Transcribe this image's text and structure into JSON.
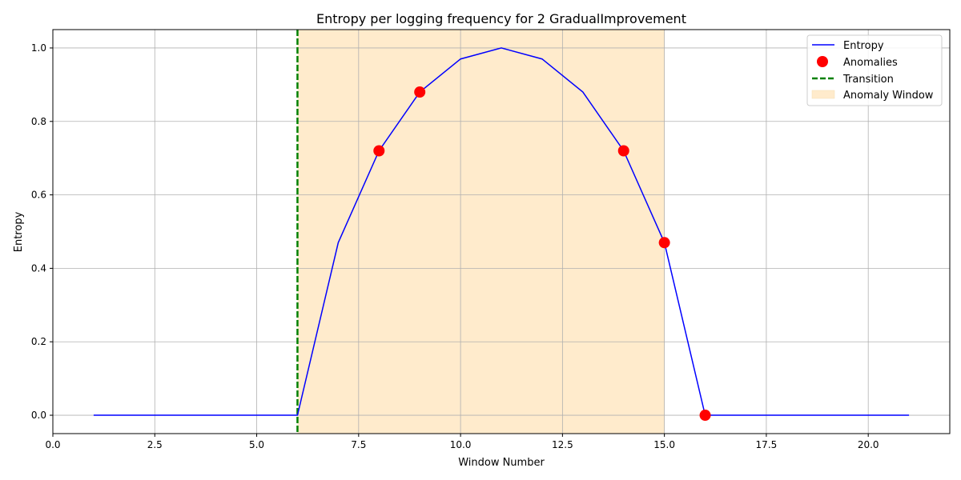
{
  "chart_data": {
    "type": "line",
    "title": "Entropy per logging frequency for 2 GradualImprovement",
    "xlabel": "Window Number",
    "ylabel": "Entropy",
    "xlim": [
      0,
      22
    ],
    "ylim": [
      -0.05,
      1.05
    ],
    "xticks": [
      0.0,
      2.5,
      5.0,
      7.5,
      10.0,
      12.5,
      15.0,
      17.5,
      20.0
    ],
    "xtick_labels": [
      "0.0",
      "2.5",
      "5.0",
      "7.5",
      "10.0",
      "12.5",
      "15.0",
      "17.5",
      "20.0"
    ],
    "yticks": [
      0.0,
      0.2,
      0.4,
      0.6,
      0.8,
      1.0
    ],
    "ytick_labels": [
      "0.0",
      "0.2",
      "0.4",
      "0.6",
      "0.8",
      "1.0"
    ],
    "grid": true,
    "legend_position": "top-right",
    "series": [
      {
        "name": "Entropy",
        "kind": "line",
        "color": "#0000ff",
        "x": [
          1,
          2,
          3,
          4,
          5,
          6,
          7,
          8,
          9,
          10,
          11,
          12,
          13,
          14,
          15,
          16,
          17,
          18,
          19,
          20,
          21
        ],
        "y": [
          0,
          0,
          0,
          0,
          0,
          0,
          0.47,
          0.72,
          0.88,
          0.97,
          1.0,
          0.97,
          0.88,
          0.72,
          0.47,
          0,
          0,
          0,
          0,
          0,
          0
        ]
      },
      {
        "name": "Anomalies",
        "kind": "scatter",
        "color": "#ff0000",
        "x": [
          8,
          9,
          14,
          15,
          16
        ],
        "y": [
          0.72,
          0.88,
          0.72,
          0.47,
          0
        ]
      }
    ],
    "transition": {
      "name": "Transition",
      "x": 6,
      "color": "#008000"
    },
    "anomaly_window": {
      "name": "Anomaly Window",
      "x_start": 6,
      "x_end": 15,
      "color": "#ffebcc"
    }
  }
}
